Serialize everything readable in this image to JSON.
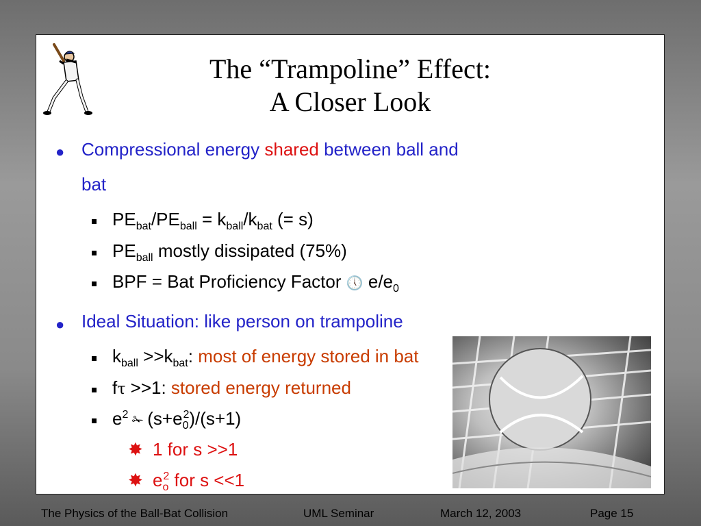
{
  "title": {
    "line1": "The “Trampoline” Effect:",
    "line2": "A Closer Look"
  },
  "bullets": {
    "b1": {
      "pre": "Compressional energy ",
      "highlight": "shared",
      "post": " between ball and",
      "line2": "bat"
    },
    "s1": {
      "pe1": "PE",
      "sub1": "bat",
      "slash": "/PE",
      "sub2": "ball",
      "eq": " = k",
      "sub3": "ball",
      "slash2": "/k",
      "sub4": "bat",
      "tail": " (= s)"
    },
    "s2": {
      "pe": "PE",
      "sub": "ball",
      "text": " mostly dissipated (75%)"
    },
    "s3": {
      "text": "BPF = Bat Proficiency Factor ",
      "symbol": "🕔",
      "tail": " e/e",
      "sub": "0"
    },
    "b2": {
      "text": "Ideal Situation:  like person on trampoline"
    },
    "s4": {
      "k1": "k",
      "sub1": "ball",
      "mid": " >>k",
      "sub2": "bat",
      "colon": ":  ",
      "note": "most of energy stored in bat"
    },
    "s5": {
      "f": "f",
      "tau": "τ",
      "mid": " >>1:  ",
      "note": "stored energy returned"
    },
    "s6": {
      "e": "e",
      "sup": "2",
      "symbol": " ✁ ",
      "paren": "(s+e",
      "sub0": "0",
      "sup2": "2",
      "tail": ")/(s+1)"
    },
    "t1": {
      "bullet": "✸",
      "text": "1 for s >>1"
    },
    "t2": {
      "bullet": "✸",
      "e": "e",
      "sub": "o",
      "sup": "2",
      "text": "  for s <<1"
    }
  },
  "footer": {
    "left": "The Physics of the Ball-Bat Collision",
    "center": "UML Seminar",
    "date": "March 12, 2003",
    "page": "Page 15"
  },
  "colors": {
    "blue": "#2323c8",
    "red": "#dd1111",
    "orange": "#c83c00"
  },
  "icons": {
    "baseball-player": "baseball-batter-illustration",
    "tennis-ball": "tennis-ball-on-racket-photo"
  }
}
